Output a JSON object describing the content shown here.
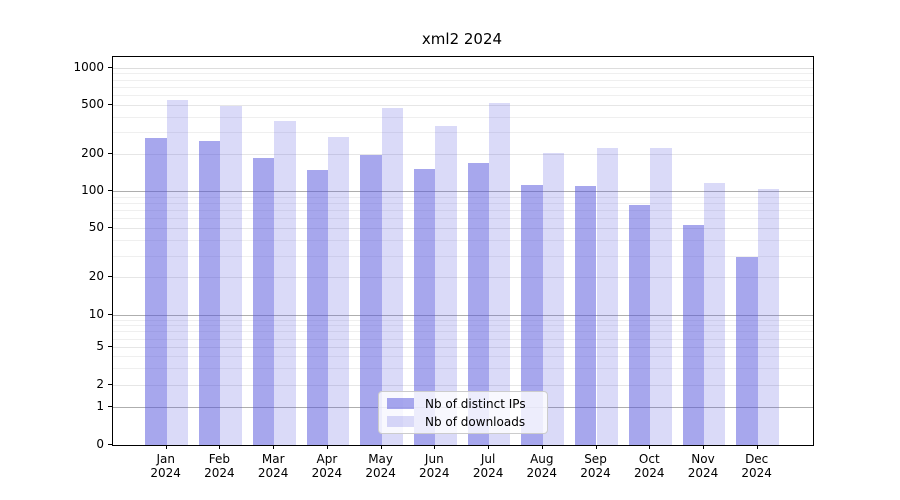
{
  "chart_data": {
    "type": "bar",
    "title": "xml2 2024",
    "categories": [
      "Jan",
      "Feb",
      "Mar",
      "Apr",
      "May",
      "Jun",
      "Jul",
      "Aug",
      "Sep",
      "Oct",
      "Nov",
      "Dec"
    ],
    "category_year": "2024",
    "series": [
      {
        "name": "Nb of distinct IPs",
        "color": "rgba(80,80,220,0.50)",
        "values": [
          268,
          252,
          185,
          148,
          196,
          150,
          170,
          112,
          110,
          77,
          53,
          29
        ]
      },
      {
        "name": "Nb of downloads",
        "color": "rgba(80,80,220,0.21)",
        "values": [
          548,
          490,
          371,
          274,
          474,
          337,
          515,
          203,
          225,
          223,
          117,
          103
        ]
      }
    ],
    "yscale": "symlog",
    "yticks": [
      0,
      1,
      2,
      5,
      10,
      20,
      50,
      100,
      200,
      500,
      1000
    ],
    "ylim": [
      0,
      1200
    ],
    "grid": true,
    "legend_position": "lower center",
    "colors": {
      "grid_minor": "#efefef",
      "grid_labeled": "#e6e6e6",
      "grid_decade": "#aeaeae",
      "grid_top_decade": "#dddddd",
      "axis": "#000000"
    }
  }
}
